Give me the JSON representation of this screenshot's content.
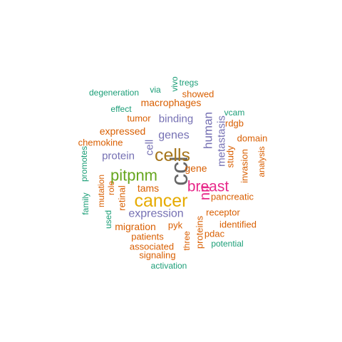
{
  "colors": {
    "teal": "#1b9e77",
    "orange": "#d95f02",
    "purple": "#7570b3",
    "magenta": "#e7298a",
    "green": "#66a61e",
    "gold": "#e6ab02",
    "brown": "#a6761d",
    "gray": "#666666"
  },
  "words": [
    {
      "text": "ccl",
      "color": "gray",
      "weight": 10,
      "vertical": true
    },
    {
      "text": "cells",
      "color": "brown",
      "weight": 8
    },
    {
      "text": "cancer",
      "color": "gold",
      "weight": 8
    },
    {
      "text": "breast",
      "color": "magenta",
      "weight": 7
    },
    {
      "text": "pitpnm",
      "color": "green",
      "weight": 7
    },
    {
      "text": "nir",
      "color": "magenta",
      "weight": 6,
      "vertical": true
    },
    {
      "text": "human",
      "color": "purple",
      "weight": 5,
      "vertical": true
    },
    {
      "text": "metastasis",
      "color": "purple",
      "weight": 5,
      "vertical": true
    },
    {
      "text": "expression",
      "color": "purple",
      "weight": 5
    },
    {
      "text": "genes",
      "color": "purple",
      "weight": 5
    },
    {
      "text": "binding",
      "color": "purple",
      "weight": 5
    },
    {
      "text": "cell",
      "color": "purple",
      "weight": 5,
      "vertical": true
    },
    {
      "text": "protein",
      "color": "purple",
      "weight": 4
    },
    {
      "text": "migration",
      "color": "orange",
      "weight": 4
    },
    {
      "text": "tams",
      "color": "orange",
      "weight": 4
    },
    {
      "text": "gene",
      "color": "orange",
      "weight": 4
    },
    {
      "text": "retinal",
      "color": "orange",
      "weight": 4,
      "vertical": true
    },
    {
      "text": "proteins",
      "color": "orange",
      "weight": 4,
      "vertical": true
    },
    {
      "text": "expressed",
      "color": "orange",
      "weight": 4
    },
    {
      "text": "macrophages",
      "color": "orange",
      "weight": 4
    },
    {
      "text": "pancreatic",
      "color": "orange",
      "weight": 3
    },
    {
      "text": "receptor",
      "color": "orange",
      "weight": 3
    },
    {
      "text": "patients",
      "color": "orange",
      "weight": 3
    },
    {
      "text": "associated",
      "color": "orange",
      "weight": 3
    },
    {
      "text": "signaling",
      "color": "orange",
      "weight": 3
    },
    {
      "text": "pdac",
      "color": "orange",
      "weight": 3
    },
    {
      "text": "identified",
      "color": "orange",
      "weight": 3
    },
    {
      "text": "pyk",
      "color": "orange",
      "weight": 3
    },
    {
      "text": "tumor",
      "color": "orange",
      "weight": 3
    },
    {
      "text": "showed",
      "color": "orange",
      "weight": 3
    },
    {
      "text": "chemokine",
      "color": "orange",
      "weight": 3
    },
    {
      "text": "domain",
      "color": "orange",
      "weight": 3
    },
    {
      "text": "rdgb",
      "color": "orange",
      "weight": 3
    },
    {
      "text": "study",
      "color": "orange",
      "weight": 3,
      "vertical": true
    },
    {
      "text": "invasion",
      "color": "orange",
      "weight": 3,
      "vertical": true
    },
    {
      "text": "analysis",
      "color": "orange",
      "weight": 3,
      "vertical": true
    },
    {
      "text": "mutation",
      "color": "orange",
      "weight": 3,
      "vertical": true
    },
    {
      "text": "role",
      "color": "orange",
      "weight": 3,
      "vertical": true
    },
    {
      "text": "three",
      "color": "orange",
      "weight": 3,
      "vertical": true
    },
    {
      "text": "degeneration",
      "color": "teal",
      "weight": 2
    },
    {
      "text": "via",
      "color": "teal",
      "weight": 2
    },
    {
      "text": "vivo",
      "color": "teal",
      "weight": 2,
      "vertical": true
    },
    {
      "text": "tregs",
      "color": "teal",
      "weight": 2
    },
    {
      "text": "effect",
      "color": "teal",
      "weight": 2
    },
    {
      "text": "vcam",
      "color": "teal",
      "weight": 2
    },
    {
      "text": "promotes",
      "color": "teal",
      "weight": 2,
      "vertical": true
    },
    {
      "text": "family",
      "color": "teal",
      "weight": 2,
      "vertical": true
    },
    {
      "text": "used",
      "color": "teal",
      "weight": 2,
      "vertical": true
    },
    {
      "text": "potential",
      "color": "teal",
      "weight": 2
    },
    {
      "text": "activation",
      "color": "teal",
      "weight": 2
    }
  ]
}
